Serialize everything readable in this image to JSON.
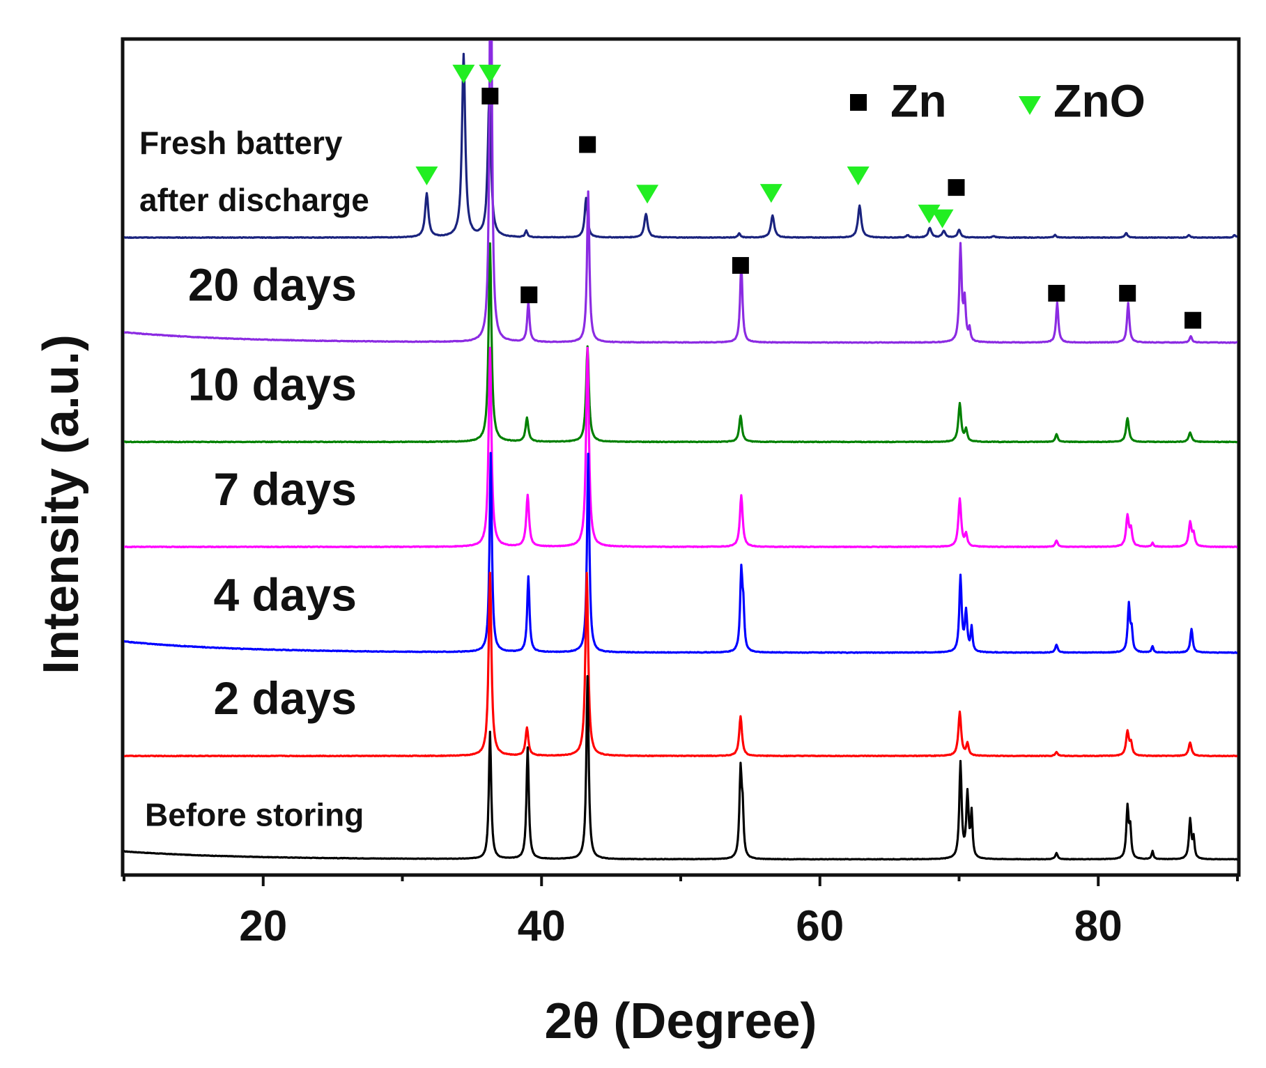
{
  "chart_data": {
    "type": "line",
    "title": "",
    "xlabel": "2θ (Degree)",
    "ylabel": "Intensity (a.u.)",
    "xlim": [
      10,
      90
    ],
    "x_major_ticks": [
      20,
      40,
      60,
      80
    ],
    "x_minor_ticks": [
      10,
      30,
      50,
      70,
      90
    ],
    "y_ticks_shown": false,
    "series": [
      {
        "name": "Before storing",
        "label": "Before storing",
        "label_size": "medium",
        "color": "#000000",
        "baseline": 0.0,
        "noise": 0.003,
        "drift": 0.1,
        "z": 6,
        "peaks": [
          [
            36.3,
            1.6,
            0.1
          ],
          [
            39.0,
            1.4,
            0.1
          ],
          [
            43.3,
            2.3,
            0.1
          ],
          [
            54.3,
            1.1,
            0.1
          ],
          [
            54.45,
            0.5,
            0.08
          ],
          [
            70.1,
            1.2,
            0.1
          ],
          [
            70.6,
            0.8,
            0.1
          ],
          [
            70.9,
            0.55,
            0.08
          ],
          [
            77.0,
            0.08,
            0.1
          ],
          [
            82.1,
            0.65,
            0.1
          ],
          [
            82.3,
            0.35,
            0.08
          ],
          [
            83.9,
            0.1,
            0.08
          ],
          [
            86.6,
            0.5,
            0.1
          ],
          [
            86.85,
            0.25,
            0.08
          ]
        ]
      },
      {
        "name": "2 days",
        "label": "2 days",
        "label_size": "large",
        "color": "#ff0000",
        "baseline": 1.3,
        "noise": 0.004,
        "drift": 0.0,
        "z": 5,
        "peaks": [
          [
            36.3,
            2.3,
            0.12
          ],
          [
            38.95,
            0.35,
            0.12
          ],
          [
            43.25,
            2.3,
            0.12
          ],
          [
            54.3,
            0.5,
            0.12
          ],
          [
            70.05,
            0.55,
            0.12
          ],
          [
            70.6,
            0.15,
            0.1
          ],
          [
            77.0,
            0.05,
            0.1
          ],
          [
            82.1,
            0.3,
            0.12
          ],
          [
            82.35,
            0.15,
            0.1
          ],
          [
            86.6,
            0.17,
            0.12
          ]
        ]
      },
      {
        "name": "4 days",
        "label": "4 days",
        "label_size": "large",
        "color": "#0000ff",
        "baseline": 2.6,
        "noise": 0.004,
        "drift": 0.14,
        "z": 4,
        "peaks": [
          [
            36.35,
            2.5,
            0.1
          ],
          [
            39.05,
            0.95,
            0.1
          ],
          [
            43.35,
            2.5,
            0.1
          ],
          [
            54.35,
            1.0,
            0.1
          ],
          [
            54.5,
            0.45,
            0.08
          ],
          [
            70.1,
            0.95,
            0.1
          ],
          [
            70.5,
            0.5,
            0.1
          ],
          [
            70.9,
            0.3,
            0.08
          ],
          [
            77.0,
            0.1,
            0.1
          ],
          [
            82.2,
            0.6,
            0.1
          ],
          [
            82.4,
            0.25,
            0.08
          ],
          [
            83.9,
            0.08,
            0.08
          ],
          [
            86.7,
            0.3,
            0.1
          ]
        ]
      },
      {
        "name": "7 days",
        "label": "7 days",
        "label_size": "large",
        "color": "#ff00ff",
        "baseline": 3.93,
        "noise": 0.004,
        "drift": 0.0,
        "z": 3,
        "peaks": [
          [
            36.3,
            2.5,
            0.12
          ],
          [
            39.0,
            0.65,
            0.12
          ],
          [
            43.3,
            2.5,
            0.12
          ],
          [
            54.35,
            0.65,
            0.12
          ],
          [
            70.05,
            0.6,
            0.12
          ],
          [
            70.5,
            0.15,
            0.1
          ],
          [
            77.0,
            0.08,
            0.1
          ],
          [
            82.1,
            0.38,
            0.12
          ],
          [
            82.35,
            0.2,
            0.1
          ],
          [
            83.9,
            0.05,
            0.08
          ],
          [
            86.6,
            0.3,
            0.12
          ],
          [
            86.85,
            0.15,
            0.1
          ]
        ]
      },
      {
        "name": "10 days",
        "label": "10 days",
        "label_size": "large",
        "color": "#008000",
        "baseline": 5.25,
        "noise": 0.004,
        "drift": 0.0,
        "z": 2,
        "peaks": [
          [
            36.3,
            2.5,
            0.12
          ],
          [
            38.95,
            0.3,
            0.12
          ],
          [
            43.3,
            1.2,
            0.12
          ],
          [
            54.3,
            0.33,
            0.12
          ],
          [
            70.05,
            0.48,
            0.12
          ],
          [
            70.5,
            0.15,
            0.1
          ],
          [
            77.0,
            0.1,
            0.1
          ],
          [
            82.1,
            0.3,
            0.12
          ],
          [
            86.6,
            0.12,
            0.12
          ]
        ]
      },
      {
        "name": "20 days",
        "label": "20 days",
        "label_size": "large",
        "color": "#8b2be2",
        "baseline": 6.5,
        "noise": 0.004,
        "drift": 0.13,
        "z": 7,
        "peaks": [
          [
            36.35,
            5.6,
            0.1
          ],
          [
            39.05,
            0.5,
            0.1
          ],
          [
            43.35,
            1.9,
            0.1
          ],
          [
            54.35,
            1.0,
            0.1
          ],
          [
            70.1,
            1.2,
            0.1
          ],
          [
            70.4,
            0.5,
            0.1
          ],
          [
            70.75,
            0.15,
            0.08
          ],
          [
            77.05,
            0.5,
            0.1
          ],
          [
            82.15,
            0.5,
            0.1
          ],
          [
            86.65,
            0.08,
            0.1
          ]
        ]
      },
      {
        "name": "Fresh battery after discharge",
        "label": "Fresh battery",
        "label2": "after discharge",
        "label_size": "medium",
        "color": "#1a237e",
        "baseline": 7.82,
        "noise": 0.004,
        "drift": 0.0,
        "z": 1,
        "peaks": [
          [
            31.75,
            0.55,
            0.14
          ],
          [
            34.4,
            2.3,
            0.14
          ],
          [
            36.25,
            1.75,
            0.14
          ],
          [
            38.9,
            0.08,
            0.1
          ],
          [
            43.2,
            0.5,
            0.12
          ],
          [
            47.5,
            0.3,
            0.14
          ],
          [
            54.2,
            0.05,
            0.1
          ],
          [
            56.6,
            0.28,
            0.14
          ],
          [
            62.85,
            0.4,
            0.14
          ],
          [
            66.3,
            0.03,
            0.12
          ],
          [
            67.9,
            0.12,
            0.14
          ],
          [
            68.9,
            0.08,
            0.14
          ],
          [
            70.0,
            0.1,
            0.12
          ],
          [
            72.5,
            0.02,
            0.12
          ],
          [
            76.9,
            0.03,
            0.12
          ],
          [
            82.0,
            0.06,
            0.1
          ],
          [
            86.5,
            0.03,
            0.1
          ],
          [
            89.8,
            0.03,
            0.12
          ]
        ]
      }
    ],
    "markers": {
      "Zn": [
        [
          36.3,
          9.6
        ],
        [
          43.3,
          8.99
        ],
        [
          69.8,
          8.45
        ],
        [
          54.3,
          7.47
        ],
        [
          39.1,
          7.1
        ],
        [
          77.0,
          7.12
        ],
        [
          82.1,
          7.12
        ],
        [
          86.8,
          6.78
        ]
      ],
      "ZnO": [
        [
          31.75,
          8.6
        ],
        [
          34.4,
          9.88
        ],
        [
          36.3,
          9.88
        ],
        [
          47.6,
          8.37
        ],
        [
          56.5,
          8.38
        ],
        [
          62.75,
          8.6
        ],
        [
          67.85,
          8.12
        ],
        [
          68.8,
          8.06
        ]
      ]
    },
    "legend": {
      "position": "top-right",
      "items": [
        {
          "name": "Zn",
          "symbol": "square",
          "color": "#000000"
        },
        {
          "name": "ZnO",
          "symbol": "triangle-down",
          "color": "#22ee22"
        }
      ]
    }
  }
}
